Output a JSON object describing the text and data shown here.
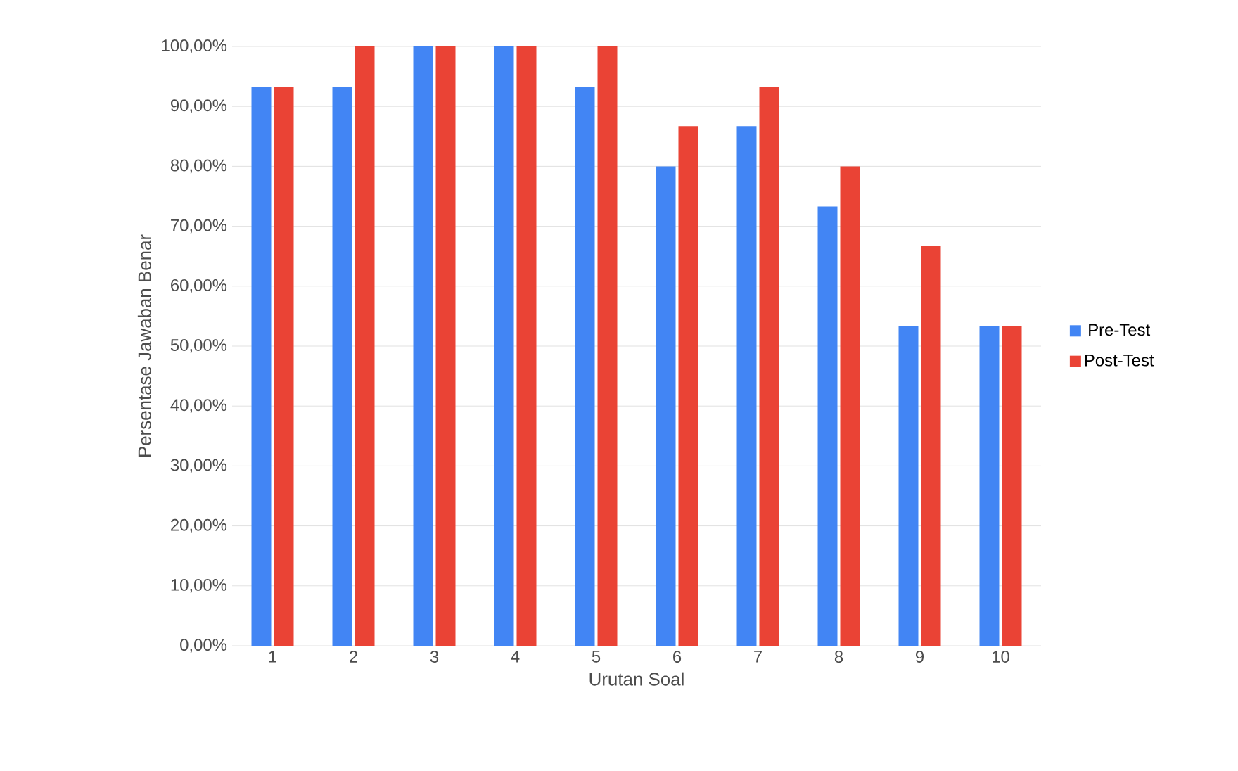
{
  "chart_data": {
    "type": "bar",
    "xlabel": "Urutan Soal",
    "ylabel": "Persentase Jawaban Benar",
    "categories": [
      "1",
      "2",
      "3",
      "4",
      "5",
      "6",
      "7",
      "8",
      "9",
      "10"
    ],
    "series": [
      {
        "name": "Pre-Test",
        "color": "#4285f4",
        "values": [
          93.3,
          93.3,
          100,
          100,
          93.3,
          80,
          86.7,
          73.3,
          53.3,
          53.3
        ]
      },
      {
        "name": "Post-Test",
        "color": "#ea4335",
        "values": [
          93.3,
          100,
          100,
          100,
          100,
          86.7,
          93.3,
          80,
          66.7,
          53.3
        ]
      }
    ],
    "ylim": [
      0,
      100
    ],
    "yticks": [
      {
        "value": 0,
        "label": "0,00%"
      },
      {
        "value": 10,
        "label": "10,00%"
      },
      {
        "value": 20,
        "label": "20,00%"
      },
      {
        "value": 30,
        "label": "30,00%"
      },
      {
        "value": 40,
        "label": "40,00%"
      },
      {
        "value": 50,
        "label": "50,00%"
      },
      {
        "value": 60,
        "label": "60,00%"
      },
      {
        "value": 70,
        "label": "70,00%"
      },
      {
        "value": 80,
        "label": "80,00%"
      },
      {
        "value": 90,
        "label": "90,00%"
      },
      {
        "value": 100,
        "label": "100,00%"
      }
    ],
    "grid": "y",
    "legend": "right"
  }
}
